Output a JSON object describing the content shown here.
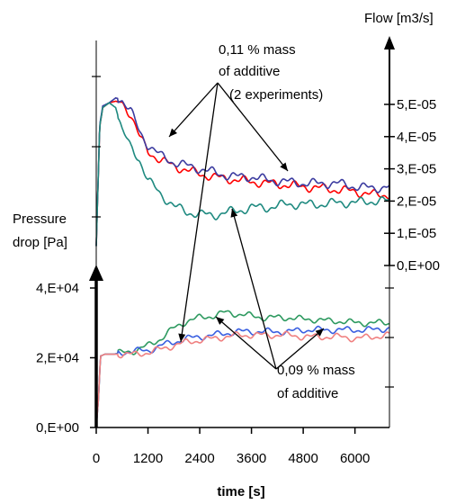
{
  "chart_data": {
    "type": "line",
    "xlabel": "time [s]",
    "x_ticks": [
      0,
      1200,
      2400,
      3600,
      4800,
      6000
    ],
    "x_tick_labels": [
      "0",
      "1200",
      "2400",
      "3600",
      "4800",
      "6000"
    ],
    "xlim": [
      0,
      6800
    ],
    "right_axis": {
      "label": "Flow [m3/s]",
      "ylim": [
        0,
        6e-05
      ],
      "ticks": [
        0,
        1e-05,
        2e-05,
        3e-05,
        4e-05,
        5e-05
      ],
      "tick_labels": [
        "0,E+00",
        "1,E-05",
        "2,E-05",
        "3,E-05",
        "4,E-05",
        "5,E-05"
      ]
    },
    "left_axis": {
      "label_lines": [
        "Pressure",
        "drop [Pa]"
      ],
      "ylim": [
        0,
        40000
      ],
      "ticks": [
        0,
        20000,
        40000
      ],
      "tick_labels": [
        "0,E+00",
        "2,E+04",
        "4,E+04"
      ]
    },
    "annotations": [
      {
        "lines": [
          "0,11 % mass",
          "of additive",
          "(2 experiments)"
        ]
      },
      {
        "lines": [
          "0,09 % mass",
          "of additive"
        ]
      }
    ],
    "flow_series": [
      {
        "color": "#ff0000",
        "x": [
          0,
          80,
          150,
          300,
          450,
          600,
          800,
          1000,
          1200,
          1500,
          1800,
          2100,
          2400,
          2700,
          3000,
          3300,
          3600,
          4000,
          4400,
          4800,
          5200,
          5600,
          6000,
          6400,
          6800
        ],
        "y": [
          6e-06,
          4.3e-05,
          4.9e-05,
          5.05e-05,
          5.1e-05,
          5.05e-05,
          4.7e-05,
          4e-05,
          3.55e-05,
          3.25e-05,
          3.1e-05,
          2.95e-05,
          2.85e-05,
          2.75e-05,
          2.7e-05,
          2.65e-05,
          2.6e-05,
          2.55e-05,
          2.5e-05,
          2.45e-05,
          2.4e-05,
          2.35e-05,
          2.3e-05,
          2.2e-05,
          2.2e-05
        ]
      },
      {
        "color": "#3c3ca0",
        "x": [
          0,
          80,
          150,
          300,
          450,
          600,
          800,
          1000,
          1200,
          1500,
          1800,
          2100,
          2400,
          2700,
          3000,
          3300,
          3600,
          4000,
          4400,
          4800,
          5200,
          5600,
          6000,
          6400,
          6800
        ],
        "y": [
          6e-06,
          4.35e-05,
          4.95e-05,
          5.05e-05,
          5.2e-05,
          5.15e-05,
          4.8e-05,
          4.15e-05,
          3.75e-05,
          3.4e-05,
          3.2e-05,
          3.1e-05,
          3e-05,
          2.9e-05,
          2.8e-05,
          2.75e-05,
          2.75e-05,
          2.65e-05,
          2.6e-05,
          2.55e-05,
          2.55e-05,
          2.55e-05,
          2.45e-05,
          2.4e-05,
          2.45e-05
        ]
      },
      {
        "color": "#1f8a80",
        "x": [
          0,
          80,
          150,
          300,
          450,
          600,
          800,
          1000,
          1200,
          1500,
          1800,
          2100,
          2400,
          2700,
          3000,
          3300,
          3600,
          4000,
          4400,
          4800,
          5200,
          5600,
          6000,
          6400,
          6800
        ],
        "y": [
          6e-06,
          4.3e-05,
          4.9e-05,
          5.05e-05,
          4.9e-05,
          4.2e-05,
          3.65e-05,
          3.3e-05,
          2.65e-05,
          2.2e-05,
          1.85e-05,
          1.65e-05,
          1.6e-05,
          1.55e-05,
          1.65e-05,
          1.7e-05,
          1.8e-05,
          1.8e-05,
          1.9e-05,
          1.9e-05,
          1.9e-05,
          1.95e-05,
          1.95e-05,
          2e-05,
          2e-05
        ]
      }
    ],
    "pressure_series": [
      {
        "color": "#2e9a60",
        "x": [
          0,
          50,
          100,
          200,
          400,
          600,
          900,
          1200,
          1500,
          1800,
          2100,
          2400,
          2700,
          3000,
          3300,
          3600,
          3900,
          4200,
          4500,
          4800,
          5100,
          5400,
          5700,
          6000,
          6400,
          6800
        ],
        "y": [
          0,
          8000,
          20500,
          21000,
          21000,
          21500,
          22000,
          23500,
          25500,
          28500,
          30500,
          31500,
          32000,
          33000,
          32500,
          32000,
          31500,
          31500,
          31500,
          31000,
          31000,
          30500,
          30500,
          30000,
          30000,
          30000
        ]
      },
      {
        "color": "#3a5fe0",
        "x": [
          0,
          50,
          100,
          200,
          400,
          600,
          900,
          1200,
          1500,
          1800,
          2100,
          2400,
          2700,
          3000,
          3300,
          3600,
          3900,
          4200,
          4500,
          4800,
          5100,
          5400,
          5700,
          6000,
          6400,
          6800
        ],
        "y": [
          0,
          8000,
          20500,
          21000,
          21000,
          21500,
          22000,
          22000,
          23500,
          24500,
          25500,
          26000,
          26500,
          27000,
          27500,
          27500,
          27500,
          27500,
          27500,
          28000,
          28000,
          28000,
          28000,
          28000,
          28000,
          28500
        ]
      },
      {
        "color": "#f08080",
        "x": [
          0,
          50,
          100,
          200,
          400,
          600,
          900,
          1200,
          1500,
          1800,
          2100,
          2400,
          2700,
          3000,
          3300,
          3600,
          3900,
          4200,
          4500,
          4800,
          5100,
          5400,
          5700,
          6000,
          6400,
          6800
        ],
        "y": [
          0,
          8000,
          20500,
          21000,
          21000,
          21000,
          21000,
          21500,
          22500,
          23500,
          24500,
          25000,
          25500,
          26000,
          26500,
          26500,
          26500,
          26500,
          26500,
          26000,
          26000,
          26000,
          26000,
          25500,
          26000,
          26500
        ]
      }
    ]
  }
}
